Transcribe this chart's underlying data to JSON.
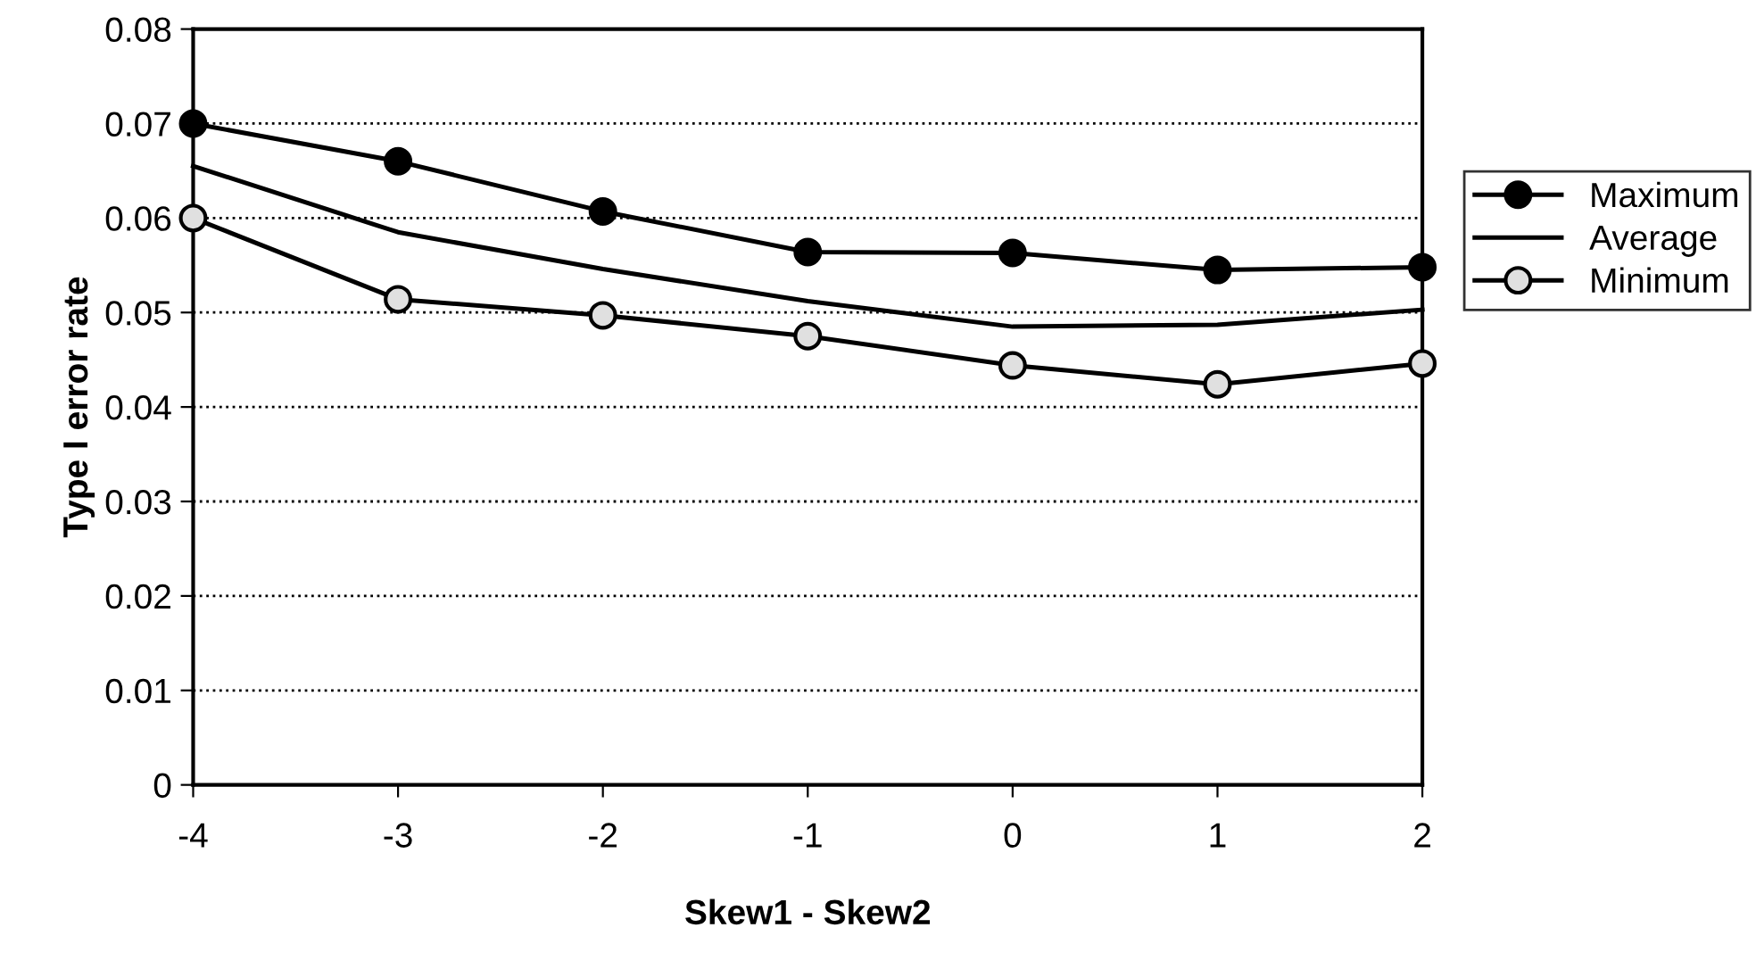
{
  "chart_data": {
    "type": "line",
    "xlabel": "Skew1 - Skew2",
    "ylabel": "Type I error rate",
    "x": [
      -4,
      -3,
      -2,
      -1,
      0,
      1,
      2
    ],
    "series": [
      {
        "name": "Maximum",
        "color": "#000000",
        "marker": "circle",
        "values": [
          0.07,
          0.066,
          0.0607,
          0.0564,
          0.0563,
          0.0545,
          0.0548
        ]
      },
      {
        "name": "Average",
        "color": "#000000",
        "marker": "none",
        "values": [
          0.0655,
          0.0585,
          0.0546,
          0.0512,
          0.0485,
          0.0487,
          0.0503
        ]
      },
      {
        "name": "Minimum",
        "color": "#000000",
        "marker": "circle",
        "values": [
          0.06,
          0.0514,
          0.0497,
          0.0475,
          0.0444,
          0.0424,
          0.0446
        ]
      }
    ],
    "xlim": [
      -4,
      2
    ],
    "xticks": [
      -4,
      -3,
      -2,
      -1,
      0,
      1,
      2
    ],
    "ylim": [
      0,
      0.08
    ],
    "yticks": [
      {
        "value": 0,
        "label": "0"
      },
      {
        "value": 0.01,
        "label": "0.01"
      },
      {
        "value": 0.02,
        "label": "0.02"
      },
      {
        "value": 0.03,
        "label": "0.03"
      },
      {
        "value": 0.04,
        "label": "0.04"
      },
      {
        "value": 0.05,
        "label": "0.05"
      },
      {
        "value": 0.06,
        "label": "0.06"
      },
      {
        "value": 0.07,
        "label": "0.07"
      },
      {
        "value": 0.08,
        "label": "0.08"
      }
    ],
    "grid": "y",
    "legend": "right",
    "line_style": "solid"
  }
}
